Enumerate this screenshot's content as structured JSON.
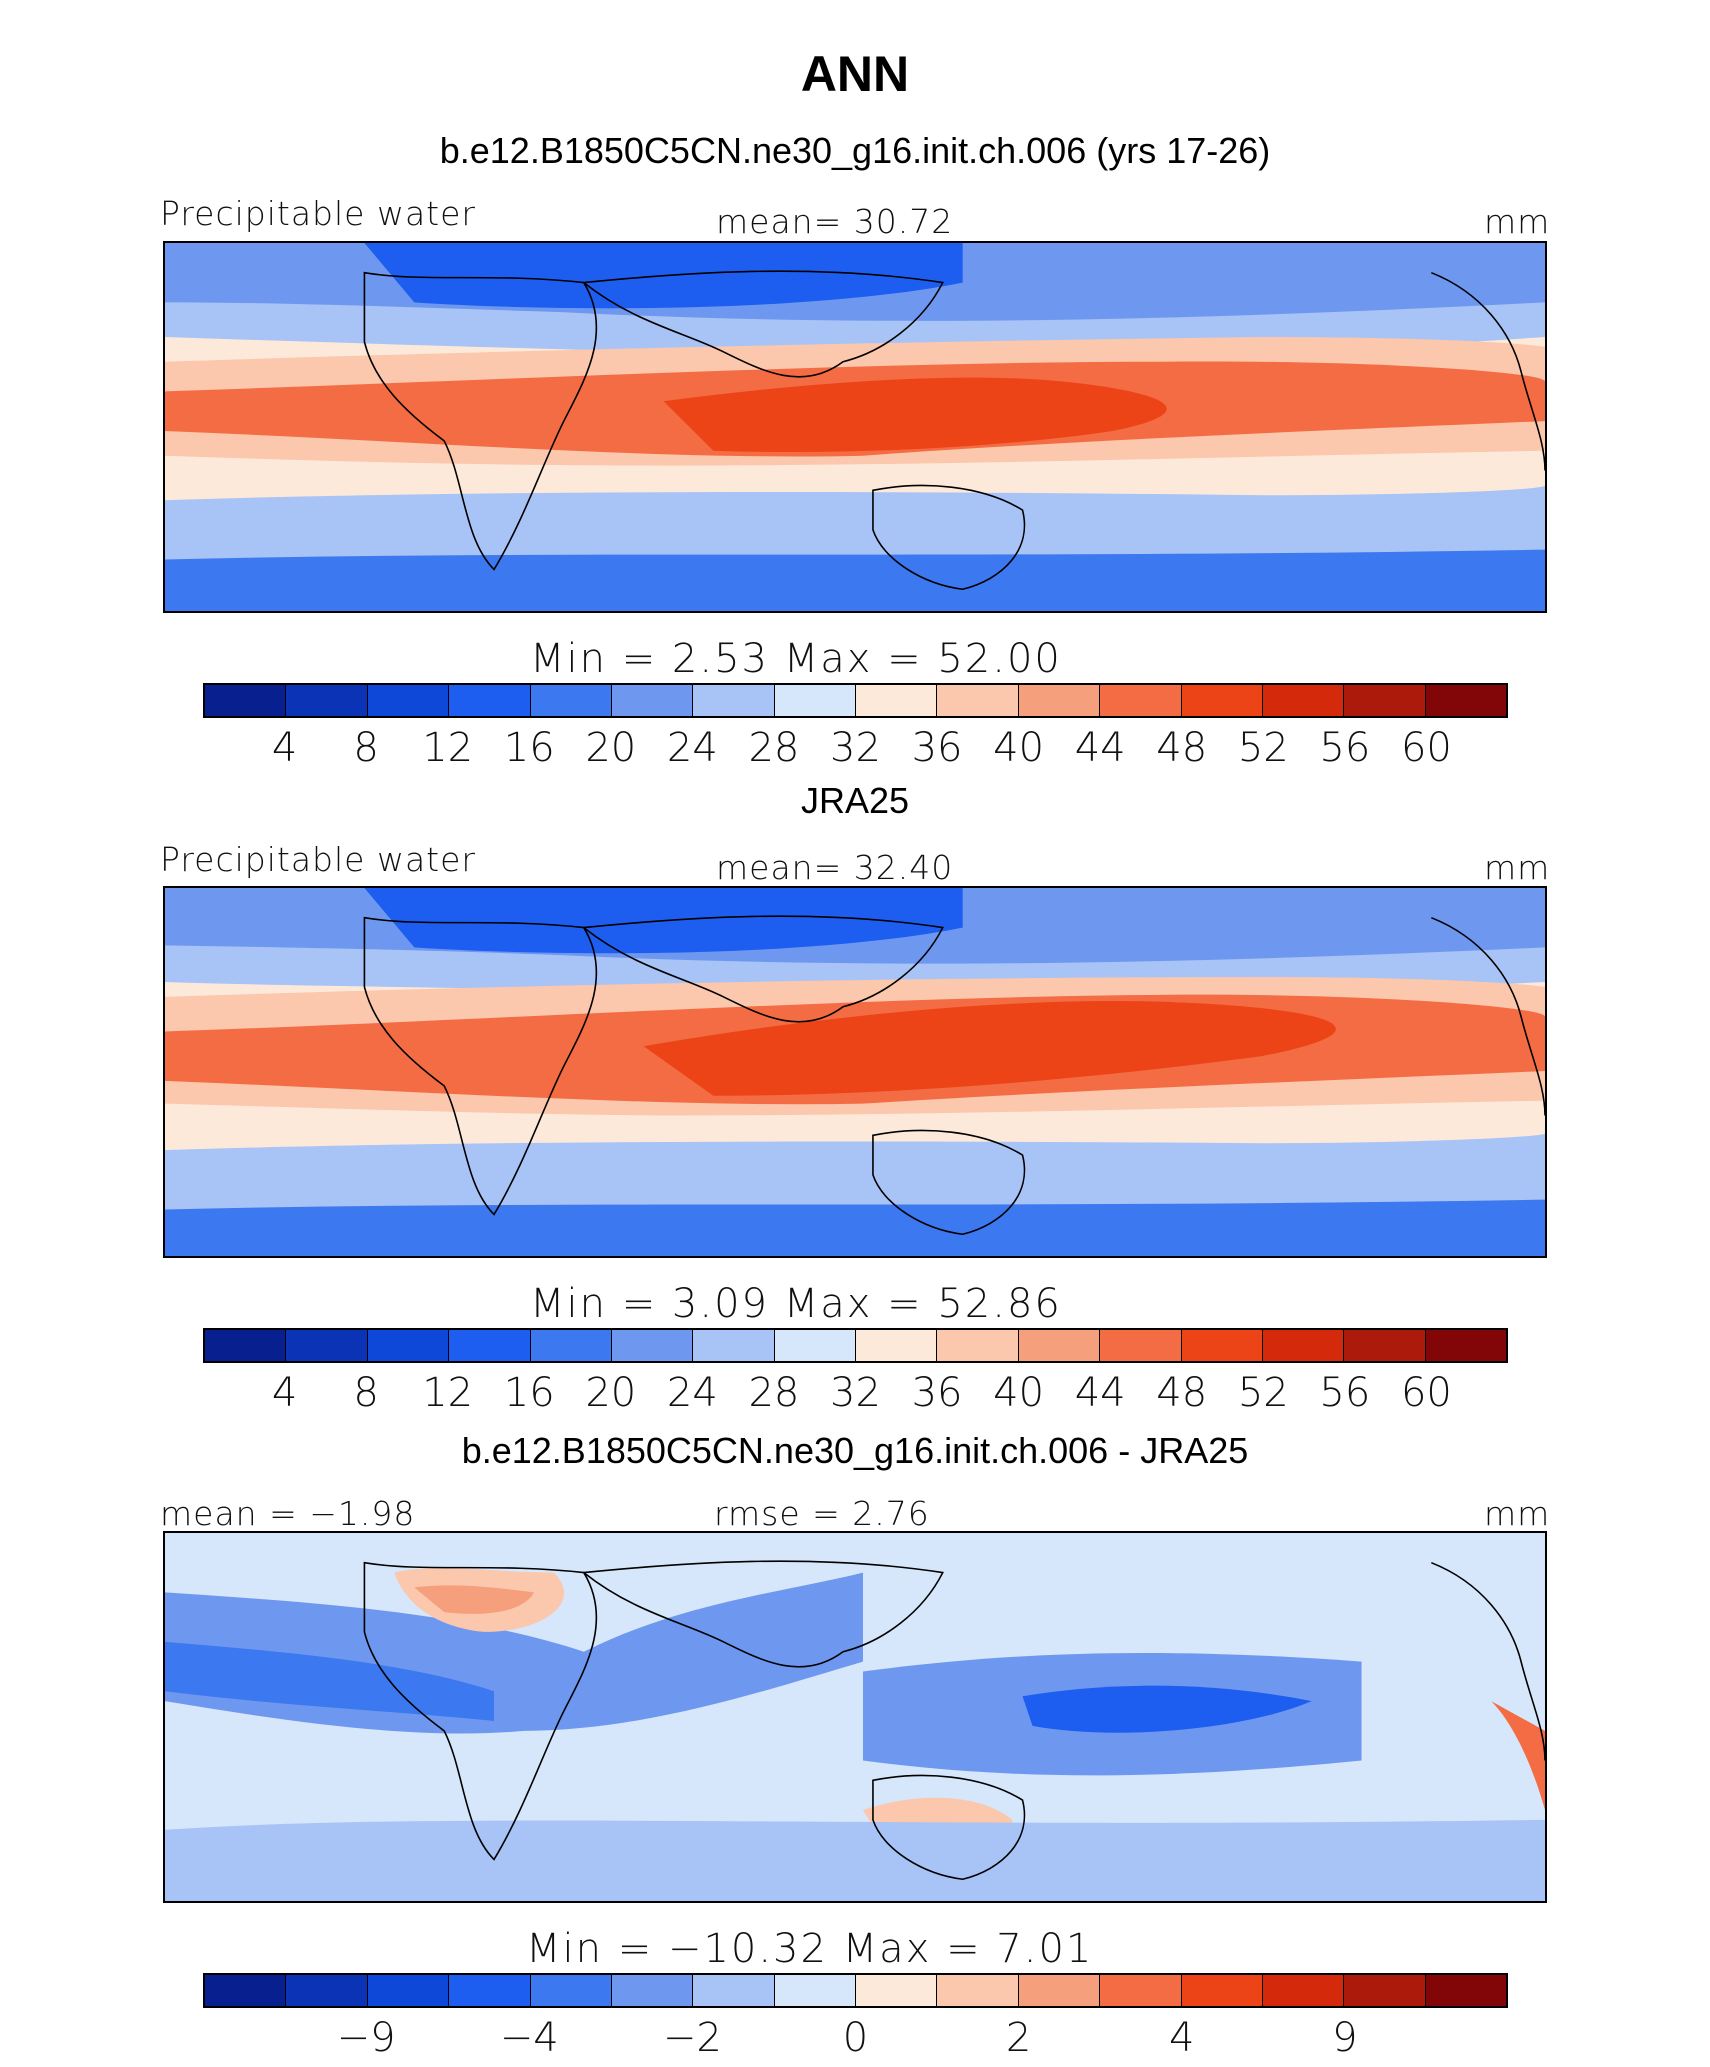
{
  "title": "ANN",
  "palette": [
    "#08208f",
    "#0a33b5",
    "#0e48d8",
    "#1d5ef0",
    "#3c78f0",
    "#6e98ef",
    "#a8c3f5",
    "#d6e6fb",
    "#fde9da",
    "#fbc7ad",
    "#f69f7c",
    "#f36c44",
    "#ec4417",
    "#d4290a",
    "#ab1a0b",
    "#820608"
  ],
  "chart_data": [
    {
      "type": "heatmap",
      "title": "b.e12.B1850C5CN.ne30_g16.init.ch.006 (yrs 17-26)",
      "left_label": "Precipitable water",
      "center_label": "mean=   30.72",
      "units": "mm",
      "mean": 30.72,
      "min": 2.53,
      "max": 52.0,
      "minmax_text": "Min  =     2.53  Max  =    52.00",
      "colorbar_levels": [
        4,
        8,
        12,
        16,
        20,
        24,
        28,
        32,
        36,
        40,
        44,
        48,
        52,
        56,
        60
      ],
      "colorbar_tick_labels": [
        "4",
        "8",
        "12",
        "16",
        "20",
        "24",
        "28",
        "32",
        "36",
        "40",
        "44",
        "48",
        "52",
        "56",
        "60"
      ]
    },
    {
      "type": "heatmap",
      "title": "JRA25",
      "left_label": "Precipitable water",
      "center_label": "mean=   32.40",
      "units": "mm",
      "mean": 32.4,
      "min": 3.09,
      "max": 52.86,
      "minmax_text": "Min  =     3.09  Max  =    52.86",
      "colorbar_levels": [
        4,
        8,
        12,
        16,
        20,
        24,
        28,
        32,
        36,
        40,
        44,
        48,
        52,
        56,
        60
      ],
      "colorbar_tick_labels": [
        "4",
        "8",
        "12",
        "16",
        "20",
        "24",
        "28",
        "32",
        "36",
        "40",
        "44",
        "48",
        "52",
        "56",
        "60"
      ]
    },
    {
      "type": "heatmap",
      "title": "b.e12.B1850C5CN.ne30_g16.init.ch.006 - JRA25",
      "left_label": "mean =   −1.98",
      "center_label": "rmse =     2.76",
      "units": "mm",
      "mean": -1.98,
      "rmse": 2.76,
      "min": -10.32,
      "max": 7.01,
      "minmax_text": "Min  =  −10.32  Max  =     7.01",
      "colorbar_levels": [
        -9,
        -6,
        -4,
        -3,
        -2,
        -1,
        0,
        1,
        2,
        3,
        4,
        6,
        9
      ],
      "colorbar_tick_labels": [
        "−9",
        "−4",
        "−2",
        "0",
        "2",
        "4",
        "9"
      ],
      "colorbar_tick_levels": [
        -9,
        -4,
        -2,
        0,
        2,
        4,
        9
      ]
    }
  ]
}
